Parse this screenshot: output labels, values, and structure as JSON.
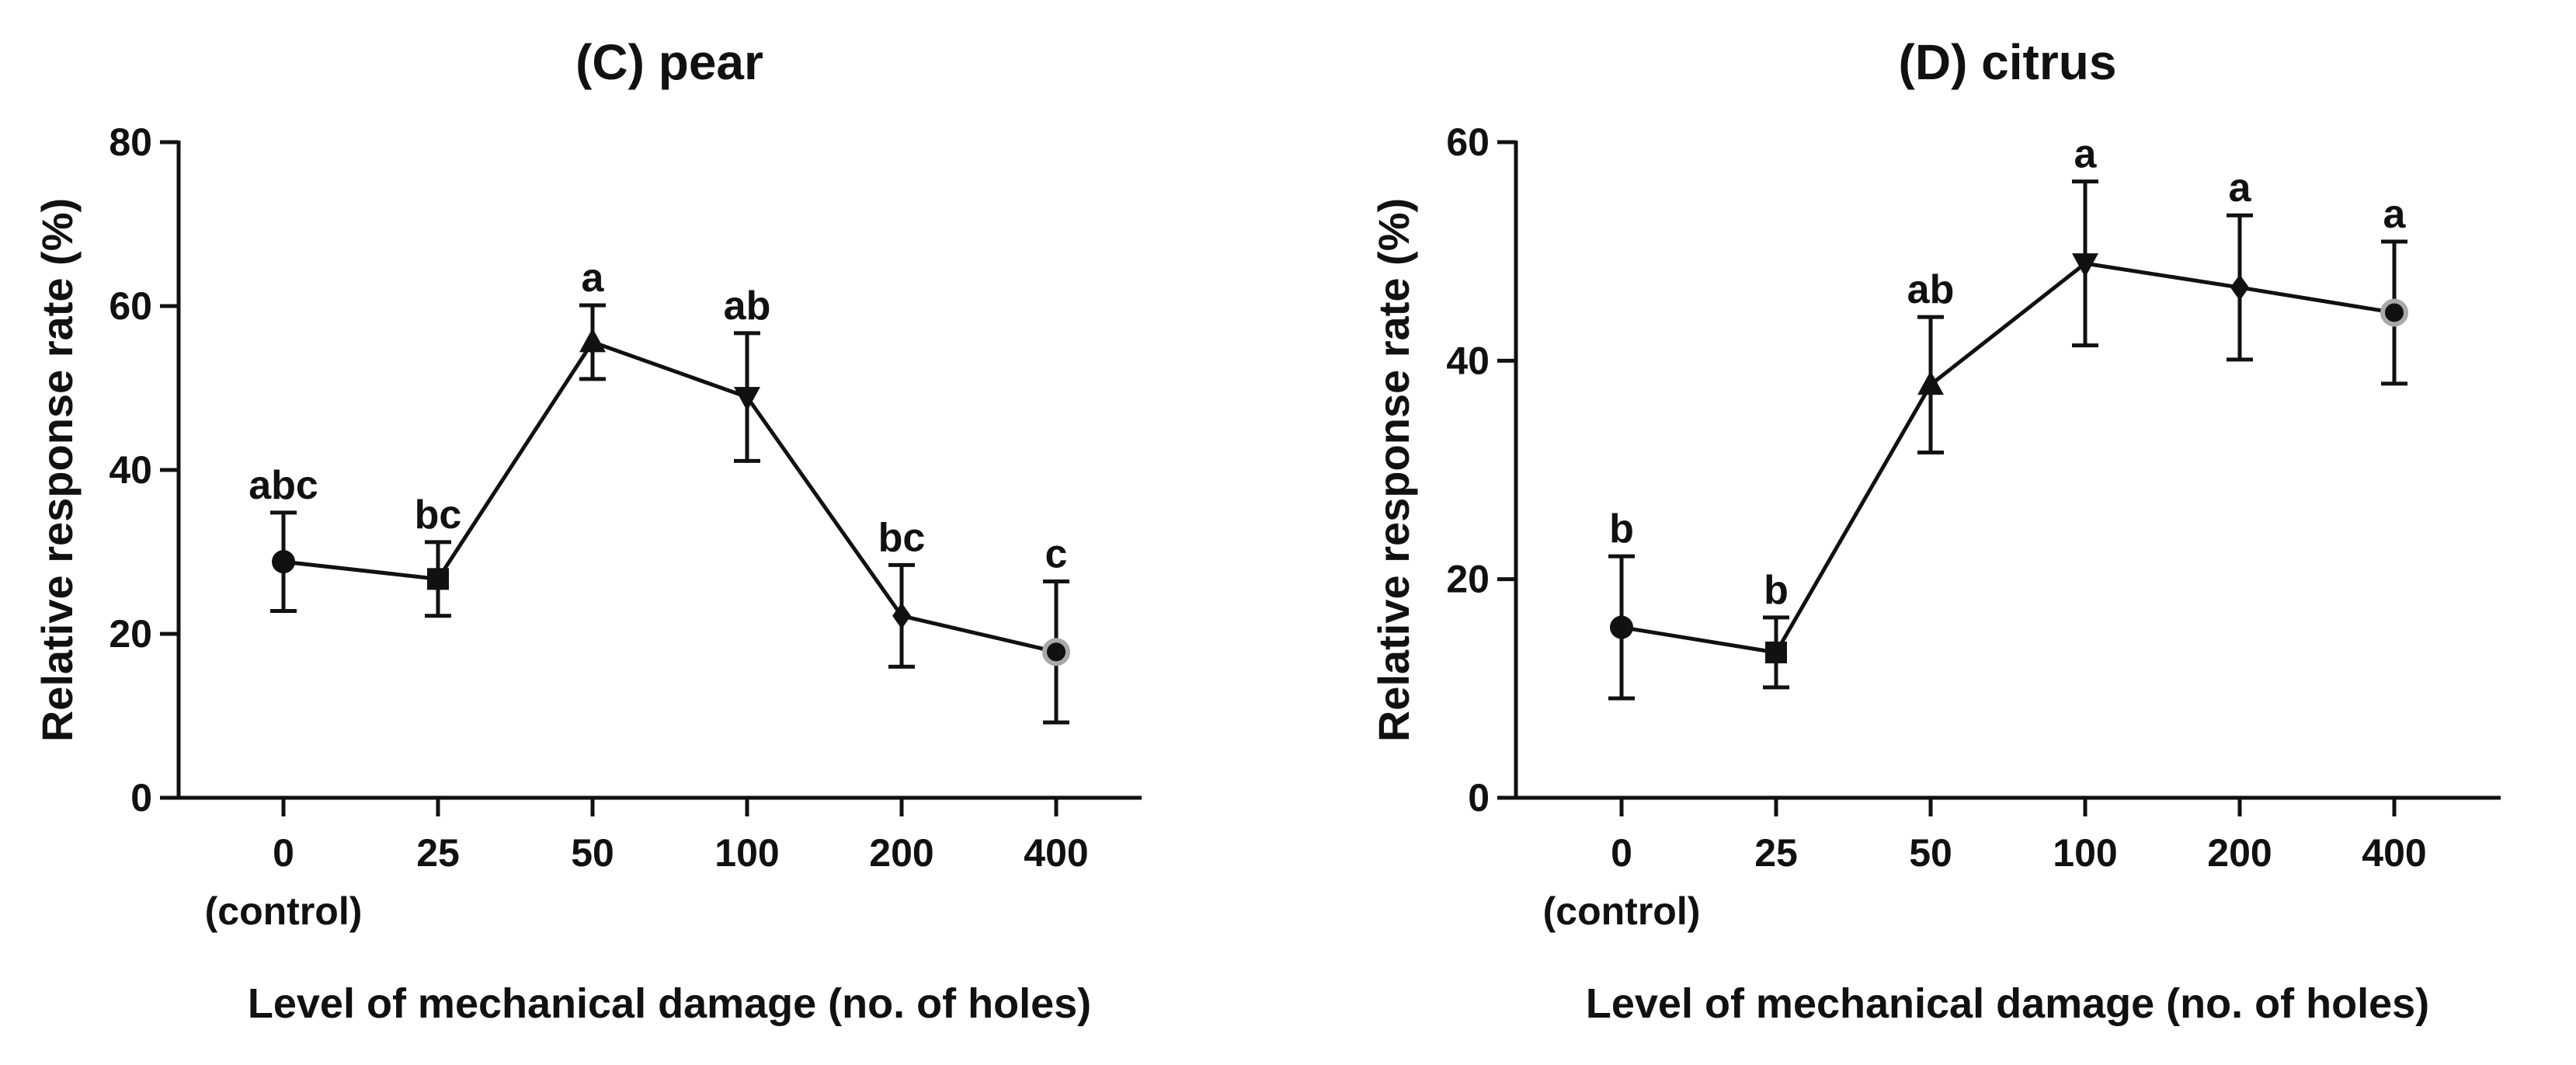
{
  "chart_data": [
    {
      "type": "line",
      "title": "(C) pear",
      "xlabel": "Level of mechanical damage (no. of holes)",
      "ylabel": "Relative response rate (%)",
      "categories": [
        "0",
        "25",
        "50",
        "100",
        "200",
        "400"
      ],
      "category_sublabels": [
        "(control)",
        "",
        "",
        "",
        "",
        ""
      ],
      "values": [
        28.8,
        26.7,
        55.6,
        48.9,
        22.2,
        17.8
      ],
      "error": [
        6.0,
        4.5,
        4.5,
        7.8,
        6.2,
        8.6
      ],
      "significance": [
        "abc",
        "bc",
        "a",
        "ab",
        "bc",
        "c"
      ],
      "markers": [
        "circle",
        "square",
        "triangle-up",
        "triangle-down",
        "diamond",
        "circle-gray"
      ],
      "ylim": [
        0,
        80
      ],
      "yticks": [
        0,
        20,
        40,
        60,
        80
      ]
    },
    {
      "type": "line",
      "title": "(D) citrus",
      "xlabel": "Level of mechanical damage (no. of holes)",
      "ylabel": "Relative response rate (%)",
      "categories": [
        "0",
        "25",
        "50",
        "100",
        "200",
        "400"
      ],
      "category_sublabels": [
        "(control)",
        "",
        "",
        "",
        "",
        ""
      ],
      "values": [
        15.6,
        13.3,
        37.8,
        48.9,
        46.7,
        44.4
      ],
      "error": [
        6.5,
        3.2,
        6.2,
        7.5,
        6.6,
        6.5
      ],
      "significance": [
        "b",
        "b",
        "ab",
        "a",
        "a",
        "a"
      ],
      "markers": [
        "circle",
        "square",
        "triangle-up",
        "triangle-down",
        "diamond",
        "circle-gray"
      ],
      "ylim": [
        0,
        60
      ],
      "yticks": [
        0,
        20,
        40,
        60
      ]
    }
  ]
}
